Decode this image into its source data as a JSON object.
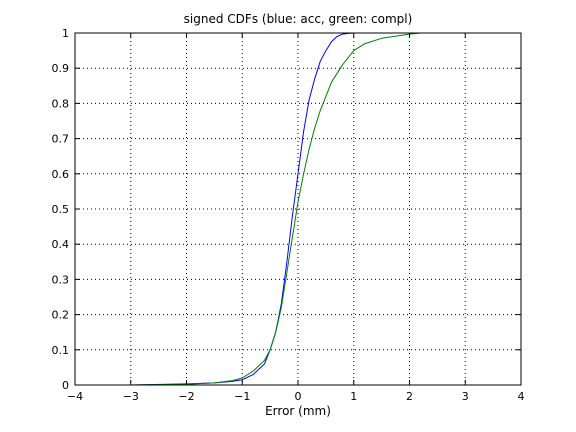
{
  "chart_data": {
    "type": "line",
    "title": "signed CDFs (blue: acc, green: compl)",
    "xlabel": "Error (mm)",
    "ylabel": "",
    "xlim": [
      -4,
      4
    ],
    "ylim": [
      0,
      1
    ],
    "x_ticks": [
      -4,
      -3,
      -2,
      -1,
      0,
      1,
      2,
      3,
      4
    ],
    "x_tick_labels": [
      "−4",
      "−3",
      "−2",
      "−1",
      "0",
      "1",
      "2",
      "3",
      "4"
    ],
    "y_ticks": [
      0,
      0.1,
      0.2,
      0.3,
      0.4,
      0.5,
      0.6,
      0.7,
      0.8,
      0.9,
      1
    ],
    "y_tick_labels": [
      "0",
      "0.1",
      "0.2",
      "0.3",
      "0.4",
      "0.5",
      "0.6",
      "0.7",
      "0.8",
      "0.9",
      "1"
    ],
    "grid": true,
    "grid_style": "dotted",
    "series": [
      {
        "color": "#0000ff",
        "x": [
          -4,
          -3,
          -2,
          -1.5,
          -1.2,
          -1,
          -0.8,
          -0.6,
          -0.5,
          -0.4,
          -0.3,
          -0.2,
          -0.1,
          0,
          0.1,
          0.2,
          0.3,
          0.4,
          0.5,
          0.6,
          0.7,
          0.8,
          0.9,
          1,
          4
        ],
        "y": [
          0,
          0,
          0.003,
          0.006,
          0.01,
          0.015,
          0.03,
          0.06,
          0.1,
          0.15,
          0.23,
          0.35,
          0.48,
          0.6,
          0.72,
          0.81,
          0.87,
          0.92,
          0.95,
          0.975,
          0.99,
          0.997,
          0.999,
          1,
          1
        ]
      },
      {
        "color": "#008000",
        "x": [
          -4,
          -3,
          -2,
          -1.5,
          -1.2,
          -1,
          -0.8,
          -0.6,
          -0.5,
          -0.4,
          -0.3,
          -0.2,
          -0.1,
          0,
          0.1,
          0.2,
          0.3,
          0.4,
          0.5,
          0.6,
          0.8,
          1,
          1.2,
          1.5,
          2,
          2.2,
          4
        ],
        "y": [
          0,
          0,
          0.002,
          0.006,
          0.012,
          0.02,
          0.04,
          0.07,
          0.1,
          0.15,
          0.22,
          0.32,
          0.42,
          0.52,
          0.6,
          0.67,
          0.73,
          0.78,
          0.82,
          0.86,
          0.91,
          0.95,
          0.97,
          0.985,
          0.997,
          1,
          1
        ]
      }
    ]
  }
}
